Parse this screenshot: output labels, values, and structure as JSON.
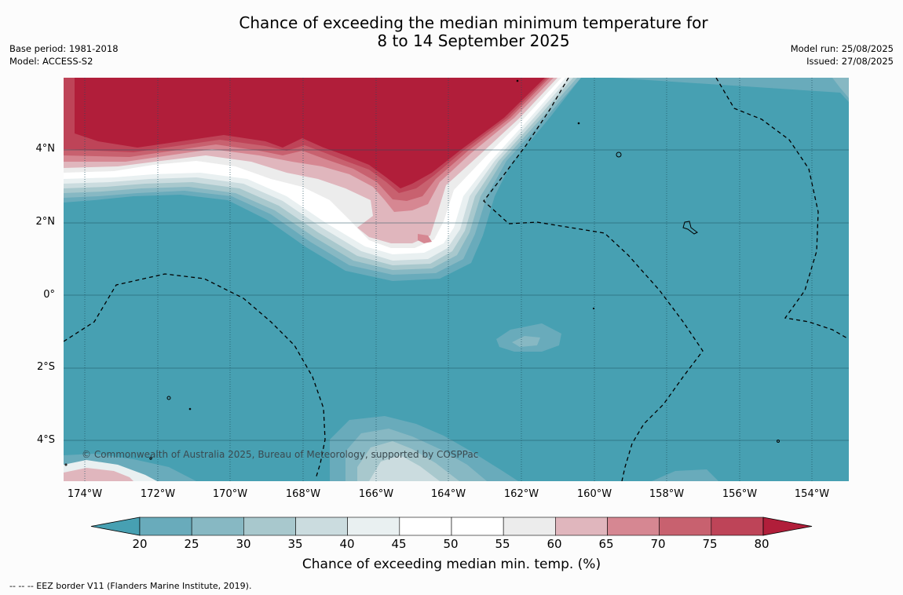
{
  "title": {
    "line1": "Chance of exceeding the median minimum temperature for",
    "line2": "8 to 14 September 2025"
  },
  "meta": {
    "base_period": "Base period: 1981-2018",
    "model": "Model: ACCESS-S2",
    "model_run": "Model run: 25/08/2025",
    "issued": "Issued: 27/08/2025"
  },
  "map": {
    "latitude_labels": [
      "4°N",
      "2°N",
      "0°",
      "2°S",
      "4°S"
    ],
    "longitude_labels": [
      "174°W",
      "172°W",
      "170°W",
      "168°W",
      "166°W",
      "164°W",
      "162°W",
      "160°W",
      "158°W",
      "156°W",
      "154°W"
    ],
    "copyright": "© Commonwealth of Australia 2025, Bureau of Meteorology, supported by COSPPac",
    "colors": {
      "below_20": "#47a0b2",
      "very_high": "#b11e3a"
    }
  },
  "colorbar": {
    "ticks": [
      "20",
      "25",
      "30",
      "35",
      "40",
      "45",
      "50",
      "55",
      "60",
      "65",
      "70",
      "75",
      "80"
    ],
    "colors": [
      "#47a0b2",
      "#69abbb",
      "#87b8c3",
      "#a8c8cd",
      "#cbdcdf",
      "#e9f0f1",
      "#ffffff",
      "#ffffff",
      "#ececec",
      "#e0b6bd",
      "#d68792",
      "#c8616f",
      "#be4458",
      "#b11e3a"
    ],
    "label": "Chance of exceeding median min. temp. (%)"
  },
  "footnote": "--  --  -- EEZ border V11 (Flanders Marine Institute, 2019)."
}
